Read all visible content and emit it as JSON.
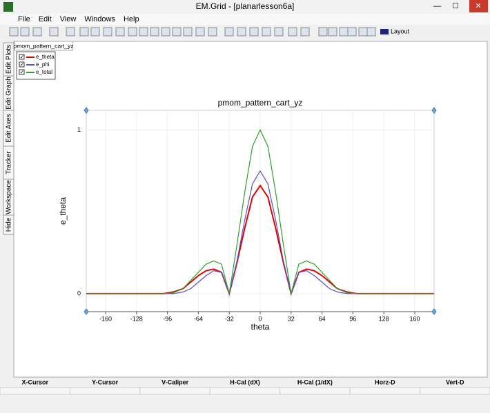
{
  "window": {
    "title": "EM.Grid - [planarlesson6a]"
  },
  "menu": [
    "File",
    "Edit",
    "View",
    "Windows",
    "Help"
  ],
  "toolbar": {
    "layout": "Layout"
  },
  "tab": "pmom_pattern_cart_yz",
  "side_tabs": [
    "Edit Plots",
    "Edit Graph",
    "Edit Axes",
    "Tracker",
    "Workspace",
    "Hide"
  ],
  "status_headers": [
    "X-Cursor",
    "Y-Cursor",
    "V-Caliper",
    "H-Cal (dX)",
    "H-Cal (1/dX)",
    "Horz-D",
    "Vert-D"
  ],
  "chart_data": {
    "type": "line",
    "title": "pmom_pattern_cart_yz",
    "x_label": "theta",
    "y_label": "e_theta",
    "x": [
      -180,
      -140,
      -100,
      -90,
      -80,
      -72,
      -64,
      -56,
      -48,
      -40,
      -32,
      -24,
      -16,
      -8,
      0,
      8,
      16,
      24,
      32,
      40,
      48,
      56,
      64,
      72,
      80,
      90,
      100,
      140,
      180
    ],
    "series": [
      {
        "name": "e_theta",
        "color": "#e00000",
        "values": [
          0,
          0,
          0,
          0.01,
          0.03,
          0.07,
          0.11,
          0.14,
          0.15,
          0.13,
          0,
          0.19,
          0.4,
          0.59,
          0.66,
          0.59,
          0.4,
          0.19,
          0,
          0.13,
          0.15,
          0.14,
          0.11,
          0.07,
          0.03,
          0.01,
          0,
          0,
          0
        ]
      },
      {
        "name": "e_phi",
        "color": "#5a4fcf",
        "values": [
          0,
          0,
          0,
          0,
          0.01,
          0.03,
          0.07,
          0.11,
          0.14,
          0.13,
          0,
          0.2,
          0.45,
          0.67,
          0.75,
          0.67,
          0.45,
          0.2,
          0,
          0.13,
          0.14,
          0.11,
          0.07,
          0.03,
          0.01,
          0,
          0,
          0,
          0
        ]
      },
      {
        "name": "e_total",
        "color": "#2e9e2e",
        "values": [
          0,
          0,
          0,
          0.005,
          0.03,
          0.08,
          0.13,
          0.18,
          0.2,
          0.18,
          0,
          0.3,
          0.62,
          0.9,
          1,
          0.9,
          0.62,
          0.3,
          0,
          0.18,
          0.2,
          0.18,
          0.13,
          0.08,
          0.03,
          0.005,
          0,
          0,
          0
        ]
      }
    ],
    "xlim": [
      -180,
      180
    ],
    "ylim": [
      -0.11,
      1.12
    ],
    "xticks": [
      -160,
      -128,
      -96,
      -64,
      -32,
      0,
      32,
      64,
      96,
      128,
      160
    ],
    "yticks": [
      0,
      1
    ],
    "grid": true
  }
}
